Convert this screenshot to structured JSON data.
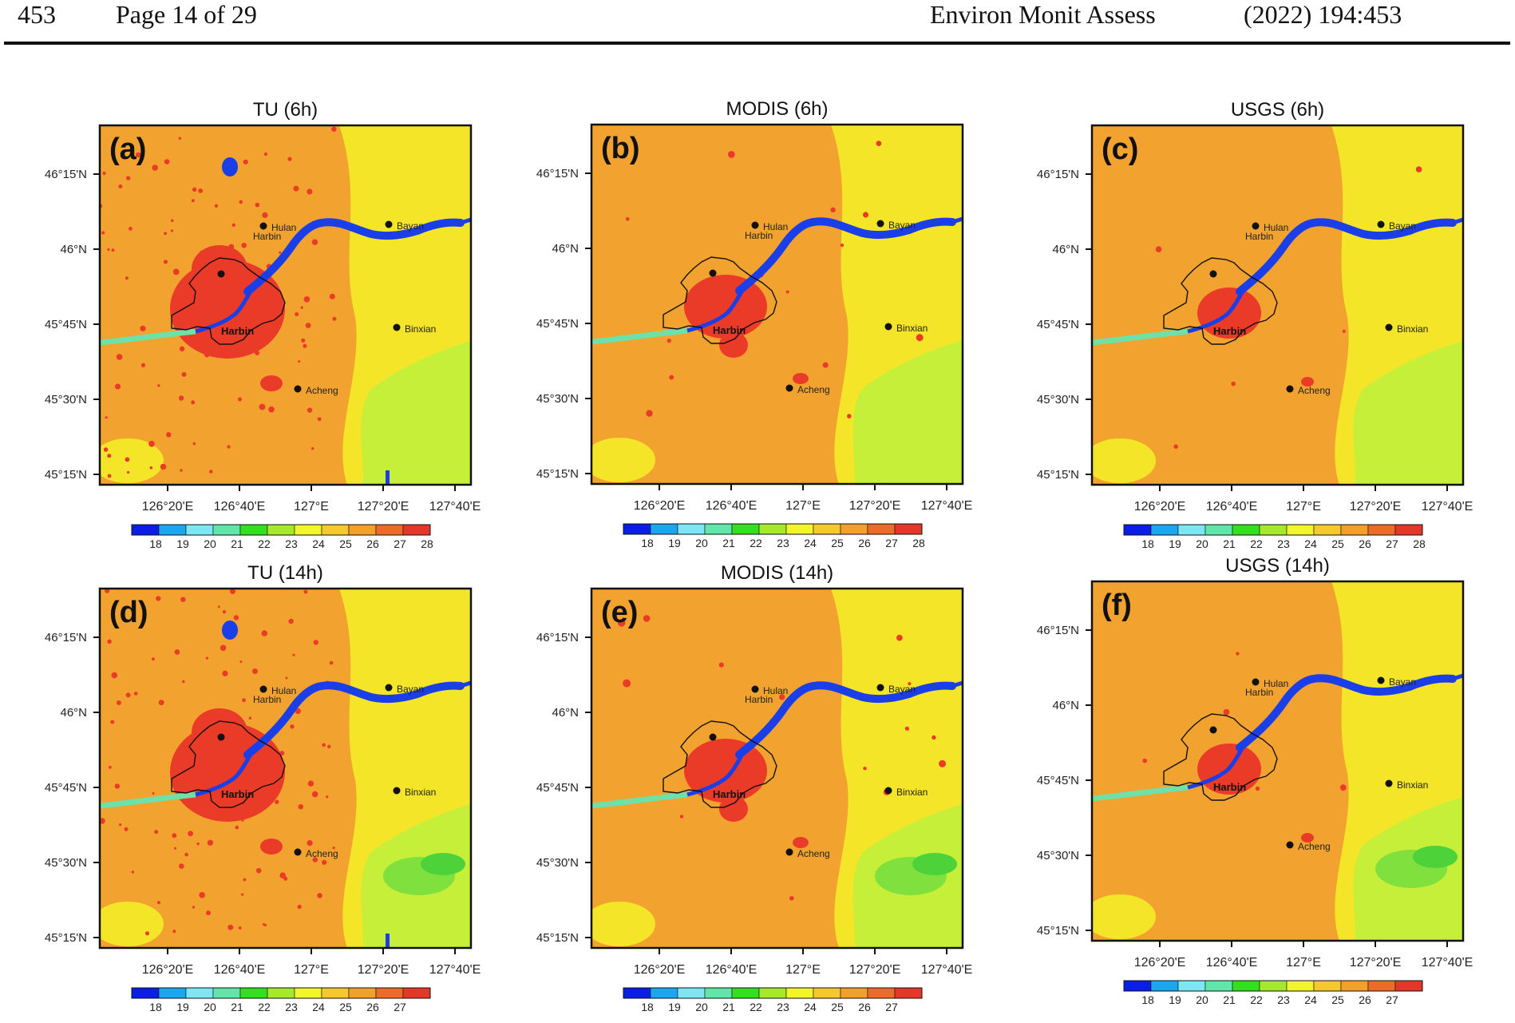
{
  "header": {
    "article_number": "453",
    "page": "Page 14 of 29",
    "journal": "Environ Monit Assess",
    "citation": "(2022) 194:453"
  },
  "colors": {
    "colorbar": [
      "#0a1ee8",
      "#19a8f0",
      "#7de6f5",
      "#60e6a8",
      "#32e01e",
      "#a5e82c",
      "#f2f529",
      "#f5c82b",
      "#f2a02a",
      "#ee6a28",
      "#e5362a"
    ],
    "water": "#1a3fe8",
    "urban": "#ea3a28",
    "suburban": "#f1a22f",
    "rural": "#f4e528",
    "forest": "#c6ef3a"
  },
  "places": [
    "Hulan",
    "Bayan",
    "Harbin",
    "Binxian",
    "Acheng"
  ],
  "city_label": "Harbin",
  "panels": [
    {
      "id": "a",
      "letter": "(a)",
      "title": "TU (6h)",
      "urban_extent": "large",
      "lat_ticks": [
        "46°15'N",
        "46°N",
        "45°45'N",
        "45°30'N",
        "45°15'N"
      ],
      "lon_ticks": [
        "126°20'E",
        "126°40'E",
        "127°E",
        "127°20'E",
        "127°40'E"
      ],
      "colorbar_labels": [
        "18",
        "19",
        "20",
        "21",
        "22",
        "23",
        "24",
        "25",
        "26",
        "27",
        "28"
      ]
    },
    {
      "id": "b",
      "letter": "(b)",
      "title": "MODIS (6h)",
      "urban_extent": "medium",
      "lat_ticks": [
        "46°15'N",
        "46°N",
        "45°45'N",
        "45°30'N",
        "45°15'N"
      ],
      "lon_ticks": [
        "126°20'E",
        "126°40'E",
        "127°E",
        "127°20'E",
        "127°40'E"
      ],
      "colorbar_labels": [
        "18",
        "19",
        "20",
        "21",
        "22",
        "23",
        "24",
        "25",
        "26",
        "27",
        "28"
      ]
    },
    {
      "id": "c",
      "letter": "(c)",
      "title": "USGS (6h)",
      "urban_extent": "small",
      "lat_ticks": [
        "46°15'N",
        "46°N",
        "45°45'N",
        "45°30'N",
        "45°15'N"
      ],
      "lon_ticks": [
        "126°20'E",
        "126°40'E",
        "127°E",
        "127°20'E",
        "127°40'E"
      ],
      "colorbar_labels": [
        "18",
        "19",
        "20",
        "21",
        "22",
        "23",
        "24",
        "25",
        "26",
        "27",
        "28"
      ]
    },
    {
      "id": "d",
      "letter": "(d)",
      "title": "TU (14h)",
      "urban_extent": "large",
      "lat_ticks": [
        "46°15'N",
        "46°N",
        "45°45'N",
        "45°30'N",
        "45°15'N"
      ],
      "lon_ticks": [
        "126°20'E",
        "126°40'E",
        "127°E",
        "127°20'E",
        "127°40'E"
      ],
      "colorbar_labels": [
        "18",
        "19",
        "20",
        "21",
        "22",
        "23",
        "24",
        "25",
        "26",
        "27"
      ]
    },
    {
      "id": "e",
      "letter": "(e)",
      "title": "MODIS (14h)",
      "urban_extent": "medium",
      "lat_ticks": [
        "46°15'N",
        "46°N",
        "45°45'N",
        "45°30'N",
        "45°15'N"
      ],
      "lon_ticks": [
        "126°20'E",
        "126°40'E",
        "127°E",
        "127°20'E",
        "127°40'E"
      ],
      "colorbar_labels": [
        "18",
        "19",
        "20",
        "21",
        "22",
        "23",
        "24",
        "25",
        "26",
        "27"
      ]
    },
    {
      "id": "f",
      "letter": "(f)",
      "title": "USGS (14h)",
      "urban_extent": "small",
      "lat_ticks": [
        "46°15'N",
        "46°N",
        "45°45'N",
        "45°30'N",
        "45°15'N"
      ],
      "lon_ticks": [
        "126°20'E",
        "126°40'E",
        "127°E",
        "127°20'E",
        "127°40'E"
      ],
      "colorbar_labels": [
        "18",
        "19",
        "20",
        "21",
        "22",
        "23",
        "24",
        "25",
        "26",
        "27"
      ]
    }
  ]
}
